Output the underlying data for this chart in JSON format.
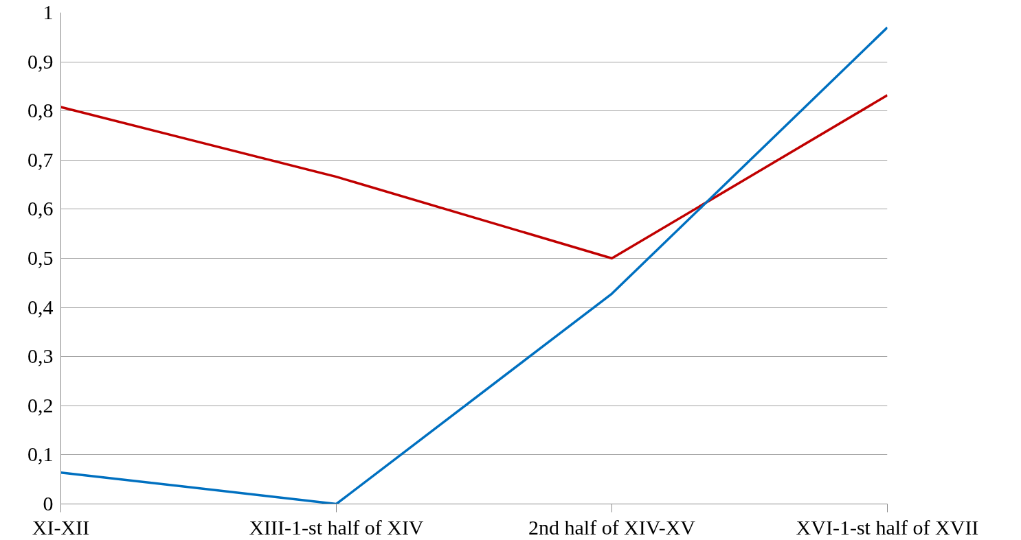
{
  "chart_data": {
    "type": "line",
    "categories": [
      "XI-XII",
      "XIII-1-st half of XIV",
      "2nd half of XIV-XV",
      "XVI-1-st half of XVII"
    ],
    "series": [
      {
        "color": "#c00000",
        "values": [
          0.808,
          0.666,
          0.5,
          0.832
        ]
      },
      {
        "color": "#0070c0",
        "values": [
          0.064,
          0,
          0.428,
          0.97
        ]
      }
    ],
    "ylim": [
      0,
      1
    ],
    "yticks": [
      {
        "value": 0,
        "label": "0"
      },
      {
        "value": 0.1,
        "label": "0,1"
      },
      {
        "value": 0.2,
        "label": "0,2"
      },
      {
        "value": 0.3,
        "label": "0,3"
      },
      {
        "value": 0.4,
        "label": "0,4"
      },
      {
        "value": 0.5,
        "label": "0,5"
      },
      {
        "value": 0.6,
        "label": "0,6"
      },
      {
        "value": 0.7,
        "label": "0,7"
      },
      {
        "value": 0.8,
        "label": "0,8"
      },
      {
        "value": 0.9,
        "label": "0,9"
      },
      {
        "value": 1,
        "label": "1"
      }
    ],
    "grid": "y",
    "marker": "none",
    "line_style": "solid"
  }
}
